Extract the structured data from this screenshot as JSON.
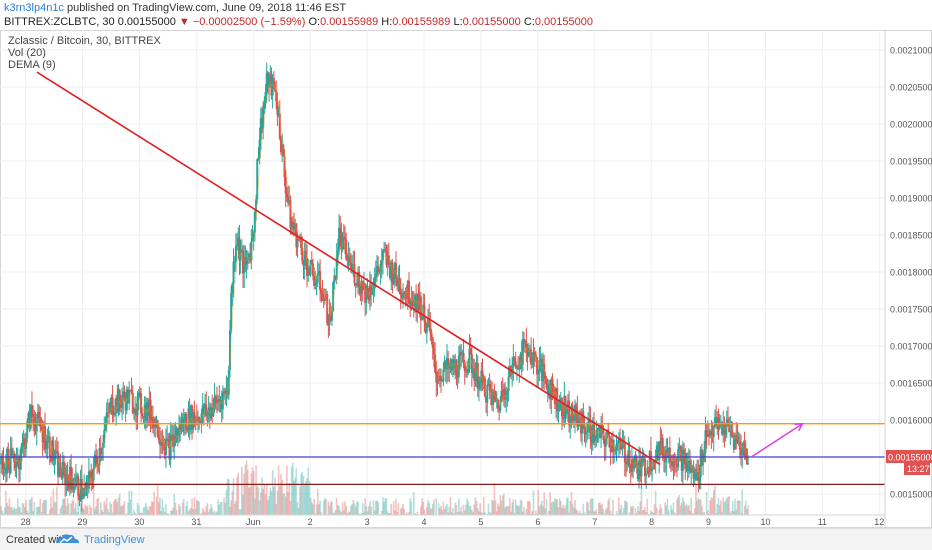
{
  "header": {
    "author": "k3rn3lp4n1c",
    "published": "published on TradingView.com, June 09, 2018 11:46 EST",
    "symbol_line": "BITTREX:ZCLBTC, 30",
    "last": "0.00155000",
    "change": "−0.00002500 (−1.59%)",
    "o_label": "O:",
    "o_value": "0.00155989",
    "h_label": "H:",
    "h_value": "0.00155989",
    "l_label": "L:",
    "l_value": "0.00155000",
    "c_label": "C:",
    "c_value": "0.00155000"
  },
  "legend": {
    "title": "Zclassic / Bitcoin, 30, BITTREX",
    "vol": "Vol (20)",
    "dema": "DEMA (9)"
  },
  "price_tag": "0.00155000",
  "time_tag": "13:27",
  "footer": {
    "created": "Created with",
    "brand": "TradingView"
  },
  "colors": {
    "up": "#26a69a",
    "down": "#d9534f",
    "trendline": "#e01e1e",
    "orange": "#ff9800",
    "blue": "#3f3fd6",
    "darkred": "#8b1a1a",
    "arrow": "#e03ce0",
    "label_red": "#e0514f"
  },
  "chart_data": {
    "type": "candlestick",
    "title": "Zclassic / Bitcoin, 30, BITTREX",
    "ylim": [
      0.00147,
      0.00212
    ],
    "y_ticks": [
      "0.00150000",
      "0.00155000",
      "0.00160000",
      "0.00165000",
      "0.00170000",
      "0.00175000",
      "0.00180000",
      "0.00185000",
      "0.00190000",
      "0.00195000",
      "0.00200000",
      "0.00205000",
      "0.00210000"
    ],
    "x_ticks": [
      "28",
      "29",
      "30",
      "31",
      "Jun",
      "2",
      "3",
      "4",
      "5",
      "6",
      "7",
      "8",
      "9",
      "10",
      "11",
      "12"
    ],
    "x_ticks_days": [
      -3,
      -2,
      -1,
      0,
      1,
      2,
      3,
      4,
      5,
      6,
      7,
      8,
      9,
      10,
      11,
      12
    ],
    "xlim_days": [
      -3.45,
      12.1
    ],
    "price_path": [
      [
        -3.45,
        0.00154
      ],
      [
        -3.1,
        0.00155
      ],
      [
        -2.9,
        0.00161
      ],
      [
        -2.6,
        0.00157
      ],
      [
        -2.4,
        0.00153
      ],
      [
        -2.2,
        0.00152
      ],
      [
        -1.95,
        0.0015
      ],
      [
        -1.7,
        0.00156
      ],
      [
        -1.5,
        0.00162
      ],
      [
        -1.2,
        0.00163
      ],
      [
        -0.8,
        0.00161
      ],
      [
        -0.5,
        0.00156
      ],
      [
        -0.2,
        0.0016
      ],
      [
        0.2,
        0.00161
      ],
      [
        0.55,
        0.00164
      ],
      [
        0.62,
        0.00178
      ],
      [
        0.7,
        0.00185
      ],
      [
        0.85,
        0.0018
      ],
      [
        1.0,
        0.00185
      ],
      [
        1.1,
        0.00198
      ],
      [
        1.25,
        0.00206
      ],
      [
        1.4,
        0.00204
      ],
      [
        1.55,
        0.00193
      ],
      [
        1.65,
        0.00187
      ],
      [
        1.8,
        0.00184
      ],
      [
        2.0,
        0.0018
      ],
      [
        2.2,
        0.00178
      ],
      [
        2.35,
        0.00173
      ],
      [
        2.5,
        0.00185
      ],
      [
        2.7,
        0.00181
      ],
      [
        3.0,
        0.00177
      ],
      [
        3.3,
        0.00182
      ],
      [
        3.6,
        0.00178
      ],
      [
        3.9,
        0.00176
      ],
      [
        4.1,
        0.00172
      ],
      [
        4.2,
        0.00166
      ],
      [
        4.5,
        0.00167
      ],
      [
        4.8,
        0.00168
      ],
      [
        5.0,
        0.00165
      ],
      [
        5.3,
        0.00162
      ],
      [
        5.55,
        0.00167
      ],
      [
        5.8,
        0.0017
      ],
      [
        6.1,
        0.00166
      ],
      [
        6.4,
        0.00162
      ],
      [
        6.7,
        0.0016
      ],
      [
        7.0,
        0.00158
      ],
      [
        7.3,
        0.00157
      ],
      [
        7.6,
        0.00155
      ],
      [
        7.8,
        0.00153
      ],
      [
        8.1,
        0.00156
      ],
      [
        8.5,
        0.00155
      ],
      [
        8.8,
        0.00152
      ],
      [
        8.95,
        0.00158
      ],
      [
        9.1,
        0.00159
      ],
      [
        9.3,
        0.00159
      ],
      [
        9.5,
        0.00157
      ],
      [
        9.7,
        0.00155
      ]
    ],
    "levels": [
      {
        "name": "orange",
        "value": 0.001595
      },
      {
        "name": "blue",
        "value": 0.00155
      },
      {
        "name": "darkred",
        "value": 0.001513
      }
    ],
    "trendline": [
      [
        -2.8,
        0.00207
      ],
      [
        8.15,
        0.00154
      ]
    ],
    "projection": [
      [
        9.75,
        0.00155
      ],
      [
        10.65,
        0.001595
      ]
    ],
    "last_value": 0.00155
  }
}
